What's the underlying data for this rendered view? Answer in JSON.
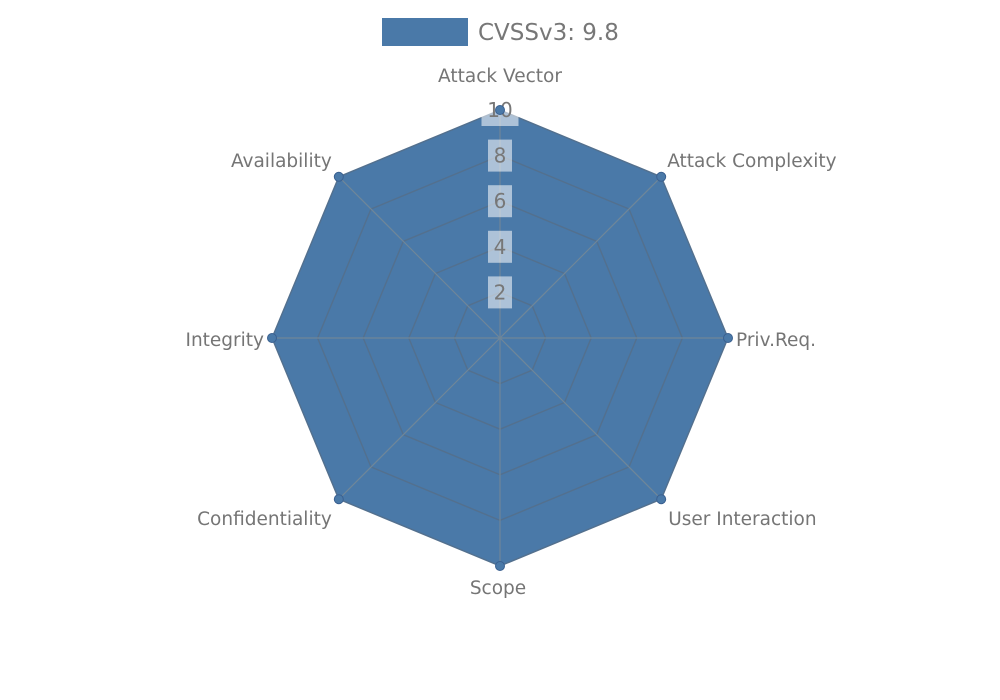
{
  "chart_data": {
    "type": "radar",
    "legend": {
      "label": "CVSSv3: 9.8",
      "swatch_color": "#4a79a8"
    },
    "categories": [
      "Attack Vector",
      "Attack Complexity",
      "Priv.Req.",
      "User Interaction",
      "Scope",
      "Confidentiality",
      "Integrity",
      "Availability"
    ],
    "series": [
      {
        "name": "CVSSv3: 9.8",
        "values": [
          10,
          10,
          10,
          10,
          10,
          10,
          10,
          10
        ]
      }
    ],
    "ticks": [
      2,
      4,
      6,
      8,
      10
    ],
    "rmax": 10,
    "grid": true,
    "legend_position": "top-center",
    "colors": {
      "fill": "#4a79a8",
      "ring_line": "#53708e",
      "spoke_line": "#6f8699",
      "marker_fill": "#4a79a8",
      "marker_stroke": "#3a6090",
      "axis_label_text": "#757575",
      "tick_text": "#777777",
      "tick_box_fill": "#ffffff",
      "tick_box_opacity": "0.55",
      "legend_text": "#777777"
    }
  }
}
